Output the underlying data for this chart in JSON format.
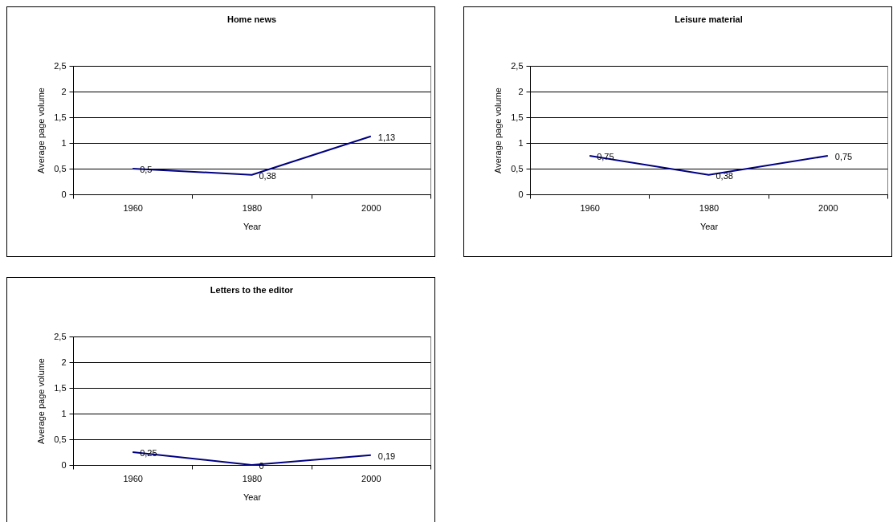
{
  "chart_data": [
    {
      "type": "line",
      "title": "Home news",
      "xlabel": "Year",
      "ylabel": "Average page volume",
      "categories": [
        "1960",
        "1980",
        "2000"
      ],
      "series": [
        {
          "color": "#000080",
          "values": [
            0.5,
            0.38,
            1.13
          ],
          "value_labels": [
            "0,5",
            "0,38",
            "1,13"
          ]
        }
      ],
      "ylim": [
        0,
        2.5
      ],
      "yticks": [
        0,
        {
          "value": 0.5,
          "label": "0,5"
        },
        1,
        {
          "value": 1.5,
          "label": "1,5"
        },
        2,
        {
          "value": 2.5,
          "label": "2,5"
        }
      ],
      "grid": "y"
    },
    {
      "type": "line",
      "title": "Leisure material",
      "xlabel": "Year",
      "ylabel": "Average page volume",
      "categories": [
        "1960",
        "1980",
        "2000"
      ],
      "series": [
        {
          "color": "#000080",
          "values": [
            0.75,
            0.38,
            0.75
          ],
          "value_labels": [
            "0,75",
            "0,38",
            "0,75"
          ]
        }
      ],
      "ylim": [
        0,
        2.5
      ],
      "yticks": [
        0,
        {
          "value": 0.5,
          "label": "0,5"
        },
        1,
        {
          "value": 1.5,
          "label": "1,5"
        },
        2,
        {
          "value": 2.5,
          "label": "2,5"
        }
      ],
      "grid": "y"
    },
    {
      "type": "line",
      "title": "Letters to the editor",
      "xlabel": "Year",
      "ylabel": "Average page volume",
      "categories": [
        "1960",
        "1980",
        "2000"
      ],
      "series": [
        {
          "color": "#000080",
          "values": [
            0.25,
            0,
            0.19
          ],
          "value_labels": [
            "0,25",
            "0",
            "0,19"
          ]
        }
      ],
      "ylim": [
        0,
        2.5
      ],
      "yticks": [
        0,
        {
          "value": 0.5,
          "label": "0,5"
        },
        1,
        {
          "value": 1.5,
          "label": "1,5"
        },
        2,
        {
          "value": 2.5,
          "label": "2,5"
        }
      ],
      "grid": "y"
    }
  ]
}
